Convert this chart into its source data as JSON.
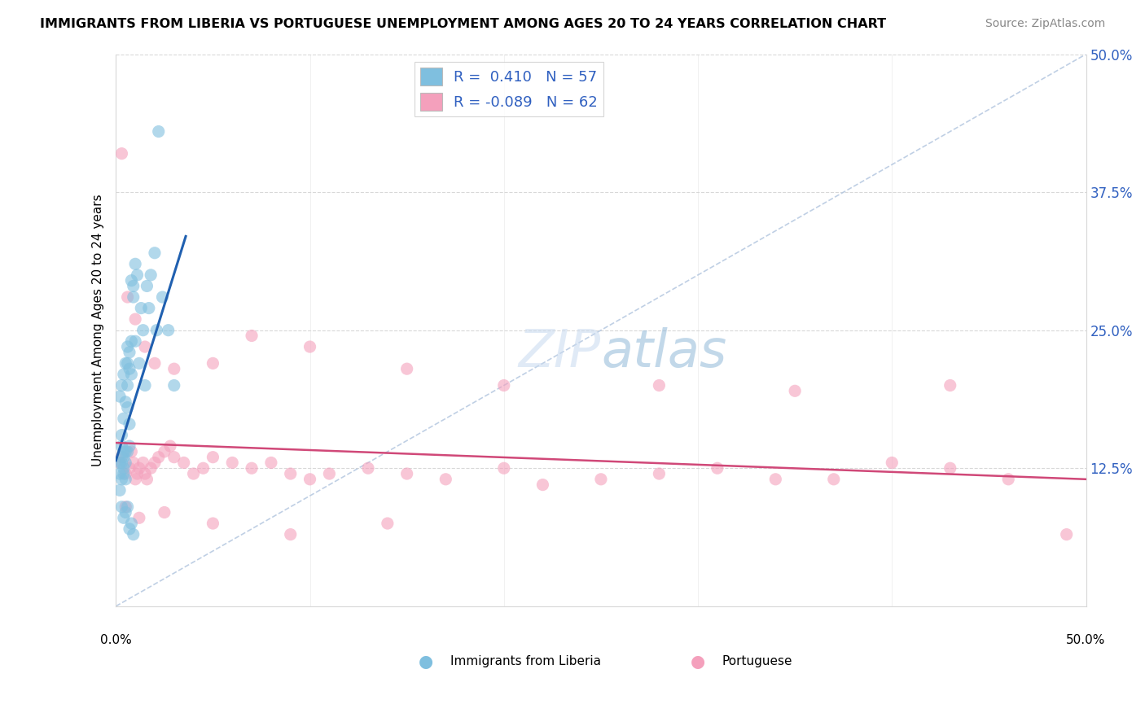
{
  "title": "IMMIGRANTS FROM LIBERIA VS PORTUGUESE UNEMPLOYMENT AMONG AGES 20 TO 24 YEARS CORRELATION CHART",
  "source": "Source: ZipAtlas.com",
  "ylabel": "Unemployment Among Ages 20 to 24 years",
  "color_blue": "#7fbfdf",
  "color_pink": "#f4a0bc",
  "trendline_blue": "#2060b0",
  "trendline_pink": "#d04878",
  "ref_line_color": "#b0c4de",
  "grid_color": "#d8d8d8",
  "watermark_color": "#c8daf0",
  "xlim": [
    0.0,
    0.5
  ],
  "ylim": [
    0.0,
    0.5
  ],
  "ytick_vals": [
    0.0,
    0.125,
    0.25,
    0.375,
    0.5
  ],
  "ytick_labels": [
    "",
    "12.5%",
    "25.0%",
    "37.5%",
    "50.0%"
  ],
  "legend_label1": "R =  0.410   N = 57",
  "legend_label2": "R = -0.089   N = 62",
  "legend_color": "#3060c0",
  "legend_label_bottom1": "Immigrants from Liberia",
  "legend_label_bottom2": "Portuguese",
  "blue_trendline_x": [
    0.0,
    0.036
  ],
  "blue_trendline_y": [
    0.132,
    0.335
  ],
  "pink_trendline_x": [
    0.0,
    0.5
  ],
  "pink_trendline_y": [
    0.148,
    0.115
  ],
  "blue_x": [
    0.002,
    0.003,
    0.003,
    0.003,
    0.004,
    0.004,
    0.004,
    0.004,
    0.005,
    0.005,
    0.005,
    0.006,
    0.006,
    0.006,
    0.006,
    0.007,
    0.007,
    0.007,
    0.007,
    0.008,
    0.008,
    0.008,
    0.009,
    0.009,
    0.01,
    0.01,
    0.011,
    0.012,
    0.013,
    0.014,
    0.015,
    0.016,
    0.017,
    0.018,
    0.02,
    0.021,
    0.022,
    0.024,
    0.027,
    0.03,
    0.002,
    0.003,
    0.004,
    0.005,
    0.006,
    0.007,
    0.008,
    0.009,
    0.003,
    0.004,
    0.005,
    0.002,
    0.003,
    0.004,
    0.005,
    0.006,
    0.002
  ],
  "blue_y": [
    0.13,
    0.115,
    0.145,
    0.13,
    0.12,
    0.135,
    0.14,
    0.125,
    0.13,
    0.14,
    0.115,
    0.18,
    0.14,
    0.2,
    0.22,
    0.145,
    0.215,
    0.165,
    0.23,
    0.24,
    0.21,
    0.295,
    0.29,
    0.28,
    0.31,
    0.24,
    0.3,
    0.22,
    0.27,
    0.25,
    0.2,
    0.29,
    0.27,
    0.3,
    0.32,
    0.25,
    0.43,
    0.28,
    0.25,
    0.2,
    0.105,
    0.09,
    0.08,
    0.085,
    0.09,
    0.07,
    0.075,
    0.065,
    0.155,
    0.17,
    0.185,
    0.19,
    0.2,
    0.21,
    0.22,
    0.235,
    0.12
  ],
  "pink_x": [
    0.002,
    0.003,
    0.005,
    0.007,
    0.008,
    0.009,
    0.01,
    0.011,
    0.012,
    0.014,
    0.015,
    0.016,
    0.018,
    0.02,
    0.022,
    0.025,
    0.028,
    0.03,
    0.035,
    0.04,
    0.045,
    0.05,
    0.06,
    0.07,
    0.08,
    0.09,
    0.1,
    0.11,
    0.13,
    0.15,
    0.17,
    0.2,
    0.22,
    0.25,
    0.28,
    0.31,
    0.34,
    0.37,
    0.4,
    0.43,
    0.46,
    0.49,
    0.003,
    0.006,
    0.01,
    0.015,
    0.02,
    0.03,
    0.05,
    0.07,
    0.1,
    0.15,
    0.2,
    0.28,
    0.35,
    0.43,
    0.005,
    0.012,
    0.025,
    0.05,
    0.09,
    0.14
  ],
  "pink_y": [
    0.13,
    0.135,
    0.12,
    0.125,
    0.14,
    0.13,
    0.115,
    0.12,
    0.125,
    0.13,
    0.12,
    0.115,
    0.125,
    0.13,
    0.135,
    0.14,
    0.145,
    0.135,
    0.13,
    0.12,
    0.125,
    0.135,
    0.13,
    0.125,
    0.13,
    0.12,
    0.115,
    0.12,
    0.125,
    0.12,
    0.115,
    0.125,
    0.11,
    0.115,
    0.12,
    0.125,
    0.115,
    0.115,
    0.13,
    0.125,
    0.115,
    0.065,
    0.41,
    0.28,
    0.26,
    0.235,
    0.22,
    0.215,
    0.22,
    0.245,
    0.235,
    0.215,
    0.2,
    0.2,
    0.195,
    0.2,
    0.09,
    0.08,
    0.085,
    0.075,
    0.065,
    0.075
  ]
}
